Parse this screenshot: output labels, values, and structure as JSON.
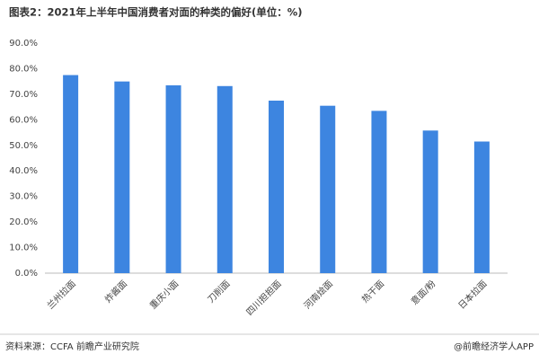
{
  "chart_data": {
    "type": "bar",
    "title": "图表2：2021年上半年中国消费者对面的种类的偏好(单位：%)",
    "categories": [
      "兰州拉面",
      "炸酱面",
      "重庆小面",
      "刀削面",
      "四川担担面",
      "河南烩面",
      "热干面",
      "意面/粉",
      "日本拉面"
    ],
    "values": [
      77.5,
      75,
      73.5,
      73.2,
      67.5,
      65.5,
      63.5,
      55.8,
      51.5
    ],
    "color": "#3d85e0",
    "ylim": [
      0,
      90
    ],
    "yticks": [
      {
        "value": 0,
        "label": "0.0%"
      },
      {
        "value": 10,
        "label": "10.0%"
      },
      {
        "value": 20,
        "label": "20.0%"
      },
      {
        "value": 30,
        "label": "30.0%"
      },
      {
        "value": 40,
        "label": "40.0%"
      },
      {
        "value": 50,
        "label": "50.0%"
      },
      {
        "value": 60,
        "label": "60.0%"
      },
      {
        "value": 70,
        "label": "70.0%"
      },
      {
        "value": 80,
        "label": "80.0%"
      },
      {
        "value": 90,
        "label": "90.0%"
      }
    ],
    "grid": false,
    "source": "资料来源：CCFA 前瞻产业研究院",
    "credit": "@前瞻经济学人APP"
  }
}
